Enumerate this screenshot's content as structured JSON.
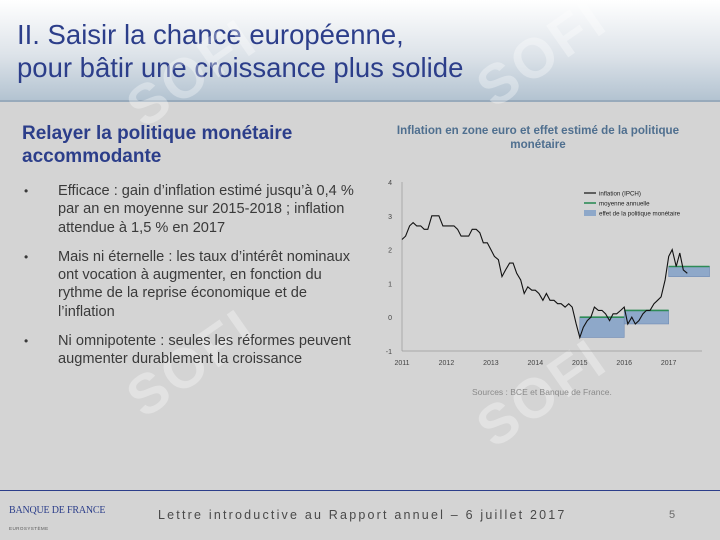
{
  "title": "II. Saisir la chance européenne,\npour bâtir une croissance plus solide",
  "section": {
    "subtitle": "Relayer la politique monétaire accommodante",
    "bullets": [
      "Efficace : gain d’inflation estimé jusqu’à 0,4 % par an en moyenne sur 2015-2018 ; inflation attendue à 1,5 % en 2017",
      "Mais ni éternelle : les taux d’intérêt nominaux ont vocation à augmenter, en fonction du rythme de la reprise économique et de l’inflation",
      "Ni omnipotente : seules les réformes peuvent augmenter durablement la croissance"
    ],
    "bullet_marker": "•"
  },
  "chart_title": "Inflation en zone euro et effet estimé de la politique monétaire",
  "sources": "Sources : BCE et Banque de France.",
  "footer": {
    "text": "Lettre introductive au Rapport annuel – 6 juillet 2017",
    "page": "5",
    "logo": "BANQUE DE FRANCE",
    "logo_sub": "EUROSYSTÈME",
    "watermark": "SOFI"
  },
  "colors": {
    "title_blue": "#2c3e8a",
    "inflation_line": "#111111",
    "average_line": "#2e8b57",
    "effect_fill": "#8ea8c9",
    "chart_title": "#4f6f8f"
  },
  "chart_data": {
    "type": "line",
    "title": "Inflation en zone euro et effet estimé de la politique monétaire",
    "xlabel": "",
    "ylabel": "",
    "xlim": [
      2011,
      2017.75
    ],
    "ylim": [
      -1,
      4
    ],
    "x_ticks": [
      "2011",
      "2012",
      "2013",
      "2014",
      "2015",
      "2016",
      "2017"
    ],
    "y_ticks": [
      "-1",
      "0",
      "1",
      "2",
      "3",
      "4"
    ],
    "legend_position": "top-right",
    "series": [
      {
        "name": "inflation (IPCH)",
        "kind": "line",
        "points": [
          [
            2011.0,
            2.3
          ],
          [
            2011.08,
            2.4
          ],
          [
            2011.17,
            2.7
          ],
          [
            2011.25,
            2.8
          ],
          [
            2011.33,
            2.7
          ],
          [
            2011.42,
            2.7
          ],
          [
            2011.5,
            2.6
          ],
          [
            2011.58,
            2.6
          ],
          [
            2011.67,
            3.0
          ],
          [
            2011.75,
            3.0
          ],
          [
            2011.83,
            3.0
          ],
          [
            2011.92,
            2.7
          ],
          [
            2012.0,
            2.7
          ],
          [
            2012.08,
            2.7
          ],
          [
            2012.17,
            2.7
          ],
          [
            2012.25,
            2.6
          ],
          [
            2012.33,
            2.4
          ],
          [
            2012.42,
            2.4
          ],
          [
            2012.5,
            2.4
          ],
          [
            2012.58,
            2.6
          ],
          [
            2012.67,
            2.6
          ],
          [
            2012.75,
            2.5
          ],
          [
            2012.83,
            2.2
          ],
          [
            2012.92,
            2.2
          ],
          [
            2013.0,
            2.0
          ],
          [
            2013.08,
            1.8
          ],
          [
            2013.17,
            1.7
          ],
          [
            2013.25,
            1.2
          ],
          [
            2013.33,
            1.4
          ],
          [
            2013.42,
            1.6
          ],
          [
            2013.5,
            1.6
          ],
          [
            2013.58,
            1.3
          ],
          [
            2013.67,
            1.1
          ],
          [
            2013.75,
            0.7
          ],
          [
            2013.83,
            0.9
          ],
          [
            2013.92,
            0.8
          ],
          [
            2014.0,
            0.8
          ],
          [
            2014.08,
            0.7
          ],
          [
            2014.17,
            0.5
          ],
          [
            2014.25,
            0.7
          ],
          [
            2014.33,
            0.5
          ],
          [
            2014.42,
            0.5
          ],
          [
            2014.5,
            0.4
          ],
          [
            2014.58,
            0.4
          ],
          [
            2014.67,
            0.3
          ],
          [
            2014.75,
            0.4
          ],
          [
            2014.83,
            0.3
          ],
          [
            2014.92,
            -0.2
          ],
          [
            2015.0,
            -0.6
          ],
          [
            2015.08,
            -0.3
          ],
          [
            2015.17,
            -0.1
          ],
          [
            2015.25,
            0.0
          ],
          [
            2015.33,
            0.3
          ],
          [
            2015.42,
            0.2
          ],
          [
            2015.5,
            0.2
          ],
          [
            2015.58,
            0.1
          ],
          [
            2015.67,
            -0.1
          ],
          [
            2015.75,
            0.1
          ],
          [
            2015.83,
            0.1
          ],
          [
            2015.92,
            0.2
          ],
          [
            2016.0,
            0.3
          ],
          [
            2016.08,
            -0.2
          ],
          [
            2016.17,
            0.0
          ],
          [
            2016.25,
            -0.2
          ],
          [
            2016.33,
            -0.1
          ],
          [
            2016.42,
            0.1
          ],
          [
            2016.5,
            0.2
          ],
          [
            2016.58,
            0.2
          ],
          [
            2016.67,
            0.4
          ],
          [
            2016.75,
            0.5
          ],
          [
            2016.83,
            0.6
          ],
          [
            2016.92,
            1.1
          ],
          [
            2017.0,
            1.8
          ],
          [
            2017.08,
            2.0
          ],
          [
            2017.17,
            1.5
          ],
          [
            2017.25,
            1.9
          ],
          [
            2017.33,
            1.4
          ],
          [
            2017.42,
            1.3
          ]
        ]
      },
      {
        "name": "moyenne annuelle",
        "kind": "step",
        "segments": [
          [
            2015.0,
            2016.0,
            0.0
          ],
          [
            2016.0,
            2017.0,
            0.2
          ],
          [
            2017.0,
            2017.92,
            1.5
          ]
        ]
      },
      {
        "name": "effet de la politique monétaire",
        "kind": "band",
        "segments": [
          [
            2015.0,
            2016.0,
            -0.6,
            0.0
          ],
          [
            2016.0,
            2017.0,
            -0.2,
            0.2
          ],
          [
            2017.0,
            2017.92,
            1.2,
            1.5
          ]
        ]
      }
    ]
  }
}
